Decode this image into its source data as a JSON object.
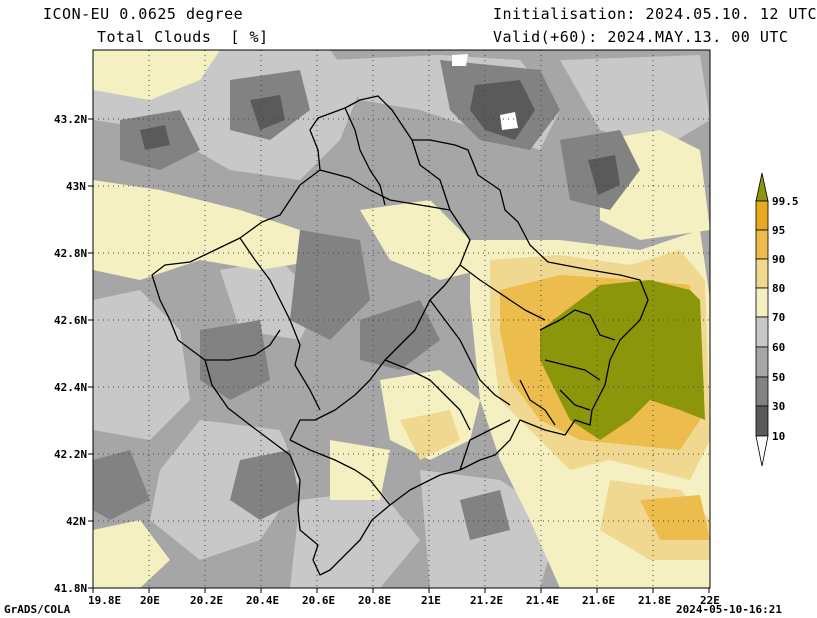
{
  "header": {
    "model": "ICON-EU 0.0625 degree",
    "variable": "Total Clouds  [ %]",
    "init": "Initialisation: 2024.05.10. 12 UTC",
    "valid": "Valid(+60): 2024.MAY.13. 00 UTC"
  },
  "footer": {
    "left": "GrADS/COLA",
    "right": "2024-05-10-16:21"
  },
  "map": {
    "lon_ticks": [
      "19.8E",
      "20E",
      "20.2E",
      "20.4E",
      "20.6E",
      "20.8E",
      "21E",
      "21.2E",
      "21.4E",
      "21.6E",
      "21.8E",
      "22E"
    ],
    "lat_ticks": [
      "43.2N",
      "43N",
      "42.8N",
      "42.6N",
      "42.4N",
      "42.2N",
      "42N",
      "41.8N"
    ]
  },
  "colorbar": {
    "labels": [
      "99.5",
      "95",
      "90",
      "80",
      "70",
      "60",
      "50",
      "30",
      "10"
    ],
    "colors": {
      "c10": "#fdfdfd",
      "c30": "#5a5a5a",
      "c50": "#828282",
      "c60": "#a6a6a6",
      "c70": "#c8c8c8",
      "c80": "#f4f0c2",
      "c90": "#f0d890",
      "c95": "#ecbc4c",
      "c99": "#e8a820",
      "top": "#8c960a"
    }
  }
}
